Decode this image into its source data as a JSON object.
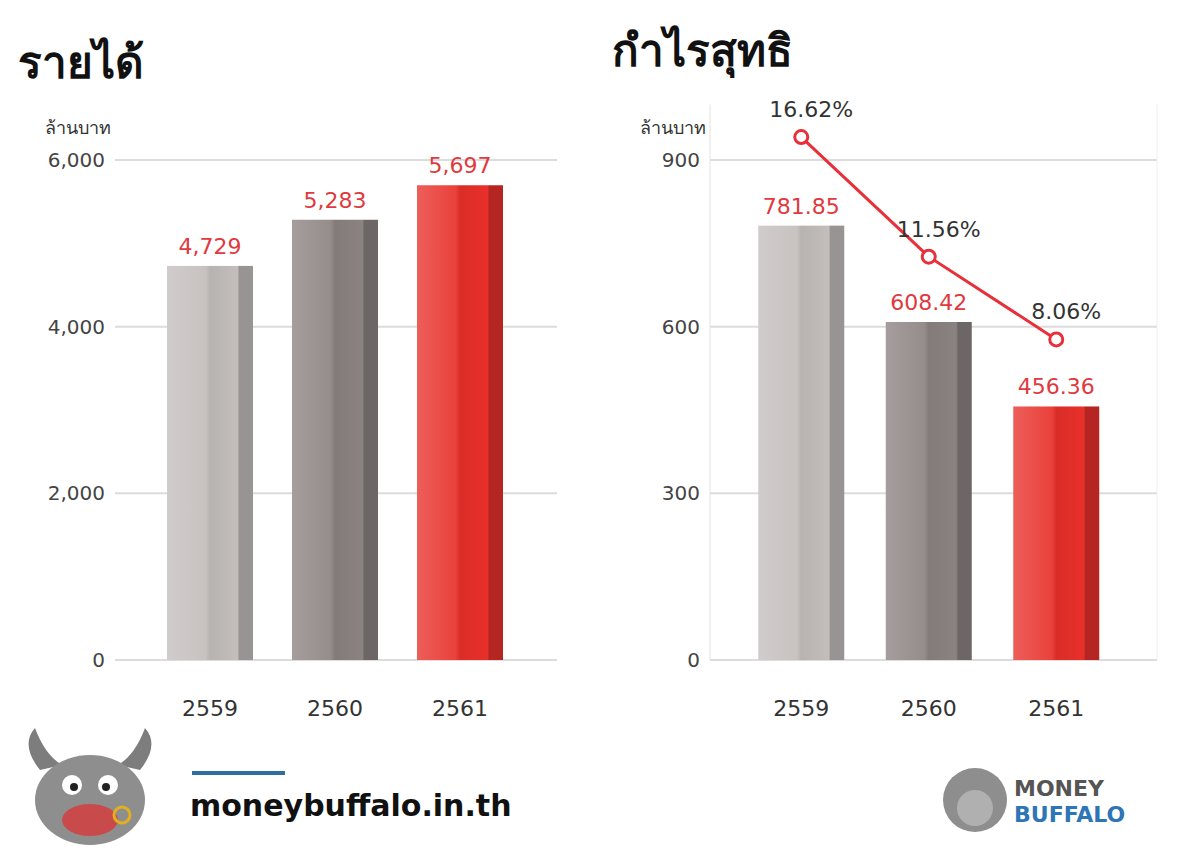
{
  "chart_data": [
    {
      "type": "bar",
      "title": "รายได้",
      "ylabel": "ล้านบาท",
      "categories": [
        "2559",
        "2560",
        "2561"
      ],
      "values": [
        4729,
        5283,
        5697
      ],
      "value_labels": [
        "4,729",
        "5,283",
        "5,697"
      ],
      "colors": [
        "#c3bebc",
        "#8b8381",
        "#e8302a"
      ],
      "ylim": [
        0,
        6000
      ],
      "yticks": [
        0,
        {
          "value": 2000,
          "label": "2,000"
        },
        {
          "value": 4000,
          "label": "4,000"
        },
        {
          "value": 6000,
          "label": "6,000"
        }
      ],
      "grid": true,
      "data_labels": true
    },
    {
      "type": "bar",
      "title": "กำไรสุทธิ",
      "ylabel": "ล้านบาท",
      "categories": [
        "2559",
        "2560",
        "2561"
      ],
      "series": [
        {
          "type": "bar",
          "values": [
            781.85,
            608.42,
            456.36
          ],
          "colors": [
            "#c3bebc",
            "#8b8381",
            "#e8302a"
          ]
        },
        {
          "type": "line",
          "axis": "y2",
          "color": "#e8303a",
          "marker": "circle",
          "values": [
            16.62,
            11.56,
            8.06
          ],
          "value_labels": [
            "16.62%",
            "11.56%",
            "8.06%"
          ]
        }
      ],
      "ylim": [
        0,
        1000
      ],
      "yticks": [
        0,
        300,
        600,
        900
      ],
      "y2lim": [
        -5.5,
        18
      ],
      "grid": true,
      "data_labels": true
    }
  ],
  "footer": {
    "site": "moneybuffalo.in.th",
    "logo": [
      "MONEY",
      "BUFFALO"
    ]
  }
}
